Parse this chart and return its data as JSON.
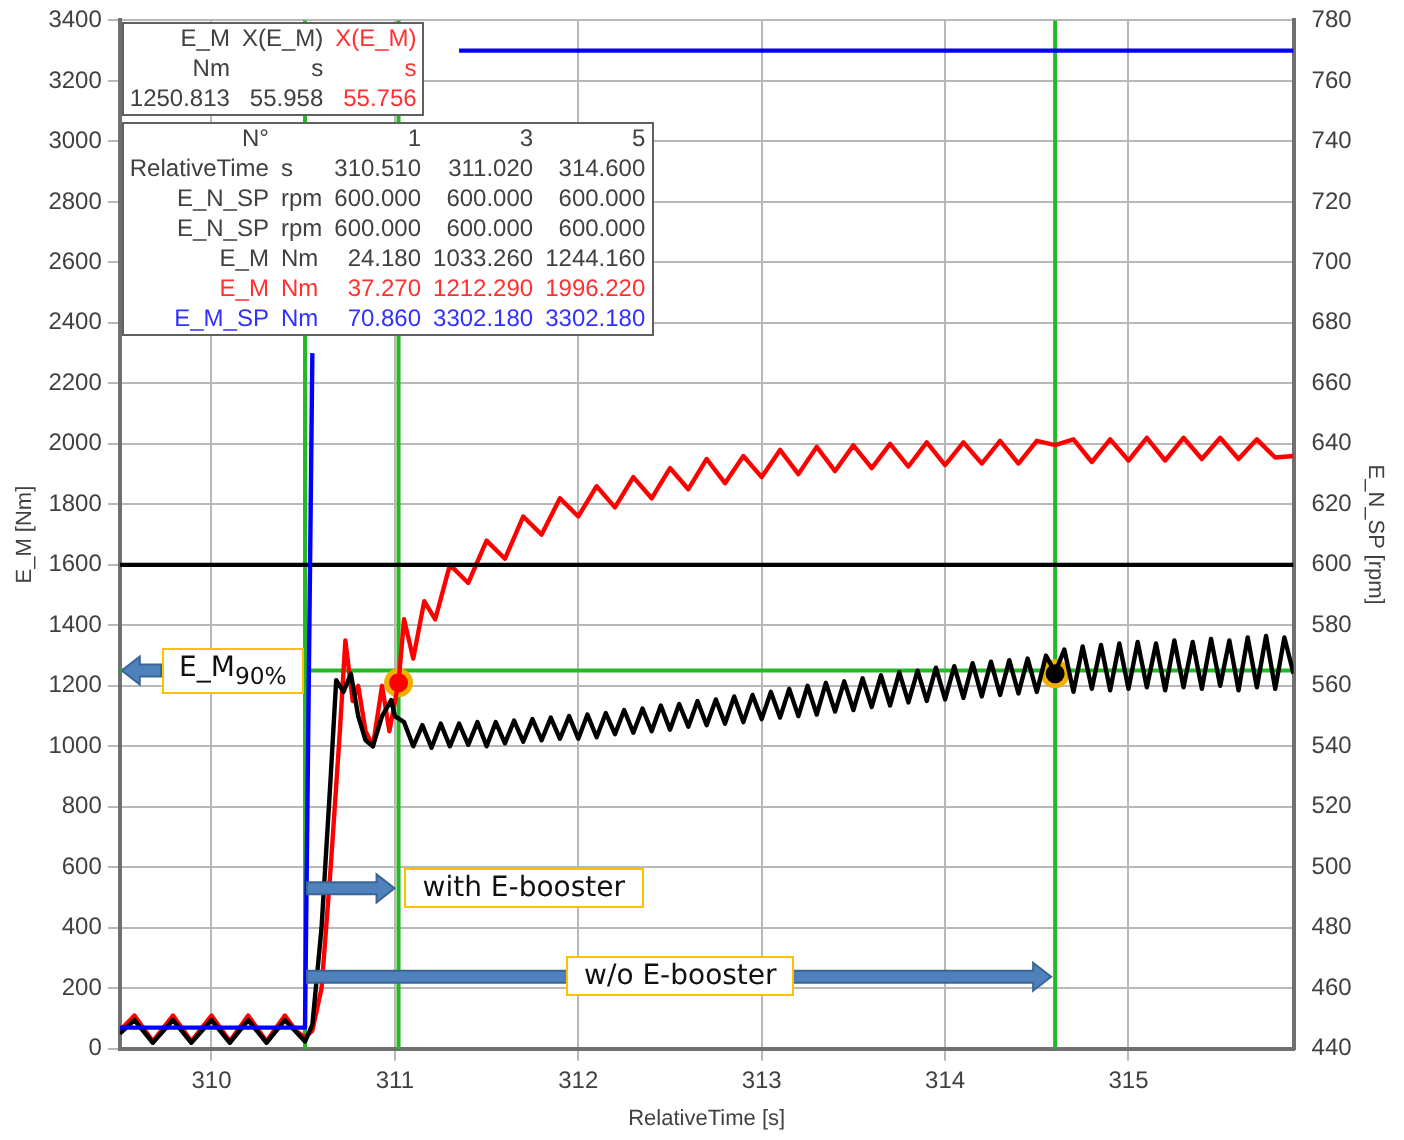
{
  "chart_data": {
    "type": "line",
    "xlabel": "RelativeTime [s]",
    "ylabel": "E_M [Nm]",
    "y2label": "E_N_SP [rpm]",
    "xlim": [
      309.5,
      315.9
    ],
    "xticks": [
      310,
      311,
      312,
      313,
      314,
      315
    ],
    "ylim": [
      0,
      3400
    ],
    "yticks": [
      0,
      200,
      400,
      600,
      800,
      1000,
      1200,
      1400,
      1600,
      1800,
      2000,
      2200,
      2400,
      2600,
      2800,
      3000,
      3200,
      3400
    ],
    "y2lim": [
      440,
      780
    ],
    "y2ticks": [
      440,
      460,
      480,
      500,
      520,
      540,
      560,
      580,
      600,
      620,
      640,
      660,
      680,
      700,
      720,
      740,
      760,
      780
    ],
    "grid": true,
    "marker": "none",
    "line_style": "solid",
    "series": [
      {
        "color": "#0000ff",
        "x": [
          309.5,
          310.51,
          310.55,
          310.58,
          311.35,
          315.9
        ],
        "values": [
          70,
          70,
          2300,
          null,
          3300,
          3300
        ]
      },
      {
        "color": "#000000",
        "axis": "y2",
        "x": [
          309.5,
          315.9
        ],
        "values": [
          600,
          600
        ]
      },
      {
        "color": "#000000",
        "x": [
          309.5,
          309.58,
          309.68,
          309.79,
          309.89,
          310.0,
          310.1,
          310.2,
          310.3,
          310.4,
          310.51,
          310.55,
          310.6,
          310.65,
          310.68,
          310.72,
          310.76,
          310.8,
          310.84,
          310.88,
          310.93,
          310.98,
          311.0,
          311.05,
          311.1,
          311.15,
          311.2,
          311.25,
          311.3,
          311.35,
          311.4,
          311.45,
          311.5,
          311.55,
          311.6,
          311.65,
          311.7,
          311.75,
          311.8,
          311.85,
          311.9,
          311.95,
          312.0,
          312.05,
          312.1,
          312.15,
          312.2,
          312.25,
          312.3,
          312.35,
          312.4,
          312.45,
          312.5,
          312.55,
          312.6,
          312.65,
          312.7,
          312.75,
          312.8,
          312.85,
          312.9,
          312.95,
          313.0,
          313.05,
          313.1,
          313.15,
          313.2,
          313.25,
          313.3,
          313.35,
          313.4,
          313.45,
          313.5,
          313.55,
          313.6,
          313.65,
          313.7,
          313.75,
          313.8,
          313.85,
          313.9,
          313.95,
          314.0,
          314.05,
          314.1,
          314.15,
          314.2,
          314.25,
          314.3,
          314.35,
          314.4,
          314.45,
          314.5,
          314.55,
          314.6,
          314.65,
          314.7,
          314.75,
          314.8,
          314.85,
          314.9,
          314.95,
          315.0,
          315.05,
          315.1,
          315.15,
          315.2,
          315.25,
          315.3,
          315.35,
          315.4,
          315.45,
          315.5,
          315.55,
          315.6,
          315.65,
          315.7,
          315.75,
          315.8,
          315.85,
          315.9
        ],
        "values": [
          50,
          95,
          20,
          95,
          20,
          95,
          20,
          95,
          20,
          95,
          24,
          80,
          400,
          900,
          1219,
          1180,
          1240,
          1100,
          1020,
          1000,
          1100,
          1153,
          1100,
          1080,
          1000,
          1070,
          995,
          1075,
          1000,
          1075,
          1005,
          1080,
          1000,
          1080,
          1010,
          1085,
          1015,
          1090,
          1020,
          1095,
          1025,
          1100,
          1025,
          1105,
          1030,
          1110,
          1040,
          1120,
          1045,
          1125,
          1050,
          1135,
          1055,
          1140,
          1065,
          1150,
          1070,
          1155,
          1075,
          1165,
          1080,
          1170,
          1090,
          1180,
          1095,
          1190,
          1100,
          1200,
          1105,
          1210,
          1115,
          1215,
          1120,
          1225,
          1130,
          1235,
          1135,
          1245,
          1145,
          1250,
          1150,
          1260,
          1155,
          1265,
          1160,
          1275,
          1165,
          1280,
          1170,
          1285,
          1175,
          1290,
          1180,
          1300,
          1244,
          1320,
          1180,
          1330,
          1190,
          1335,
          1185,
          1340,
          1190,
          1345,
          1195,
          1340,
          1185,
          1350,
          1195,
          1345,
          1190,
          1355,
          1200,
          1350,
          1185,
          1360,
          1195,
          1365,
          1190,
          1360,
          1240
        ]
      },
      {
        "color": "#ff0000",
        "x": [
          309.5,
          309.58,
          309.68,
          309.79,
          309.89,
          310.0,
          310.1,
          310.2,
          310.3,
          310.4,
          310.46,
          310.51,
          310.55,
          310.6,
          310.65,
          310.7,
          310.73,
          310.77,
          310.8,
          310.84,
          310.88,
          310.93,
          310.97,
          311.02,
          311.05,
          311.1,
          311.16,
          311.22,
          311.3,
          311.4,
          311.5,
          311.6,
          311.7,
          311.8,
          311.9,
          312.0,
          312.1,
          312.2,
          312.3,
          312.4,
          312.5,
          312.6,
          312.7,
          312.8,
          312.9,
          313.0,
          313.1,
          313.2,
          313.3,
          313.4,
          313.5,
          313.6,
          313.7,
          313.8,
          313.9,
          314.0,
          314.1,
          314.2,
          314.3,
          314.4,
          314.5,
          314.6,
          314.7,
          314.8,
          314.9,
          315.0,
          315.1,
          315.2,
          315.3,
          315.4,
          315.5,
          315.6,
          315.7,
          315.8,
          315.9
        ],
        "values": [
          60,
          110,
          25,
          110,
          25,
          110,
          25,
          110,
          25,
          110,
          60,
          37,
          60,
          200,
          600,
          1050,
          1350,
          1150,
          1200,
          1050,
          1000,
          1200,
          1050,
          1212,
          1420,
          1290,
          1480,
          1420,
          1600,
          1540,
          1680,
          1620,
          1760,
          1700,
          1820,
          1760,
          1860,
          1790,
          1890,
          1820,
          1920,
          1850,
          1950,
          1870,
          1960,
          1890,
          1980,
          1900,
          1990,
          1910,
          1995,
          1920,
          2000,
          1925,
          2005,
          1930,
          2005,
          1935,
          2010,
          1935,
          2010,
          1996,
          2015,
          1940,
          2015,
          1945,
          2020,
          1945,
          2020,
          1950,
          2020,
          1950,
          2015,
          1955,
          1960
        ]
      },
      {
        "type": "scatter",
        "marker": "circle",
        "x": [
          311.02,
          314.6
        ],
        "values": [
          1210,
          1240
        ],
        "colors": [
          "#ff0000",
          "#000000"
        ]
      }
    ],
    "ref_lines": [
      {
        "axis": "x",
        "value": 310.51,
        "color": "#22b922"
      },
      {
        "axis": "x",
        "value": 311.02,
        "color": "#22b922"
      },
      {
        "axis": "x",
        "value": 314.6,
        "color": "#22b922"
      },
      {
        "axis": "y",
        "value": 1250.813,
        "label": "E_M$_{90%}$",
        "color": "#22b922"
      }
    ],
    "annotations": [
      "E_M\tX(E_M)\tX(E_M)",
      "Nm\ts\ts",
      "1250.813\t55.958\t55.756",
      "N°\t\t1\t3\t5",
      "RelativeTime\ts\t310.510\t311.020\t314.600",
      "E_N_SP\trpm\t600.000\t600.000\t600.000",
      "E_N_SP\trpm\t600.000\t600.000\t600.000",
      "E_M\tNm\t24.180\t1033.260\t1244.160",
      "E_M\tNm\t37.270\t1212.290\t1996.220",
      "E_M_SP\tNm\t70.860\t3302.180\t3302.180",
      "with E-booster",
      "w/o E-booster"
    ]
  }
}
